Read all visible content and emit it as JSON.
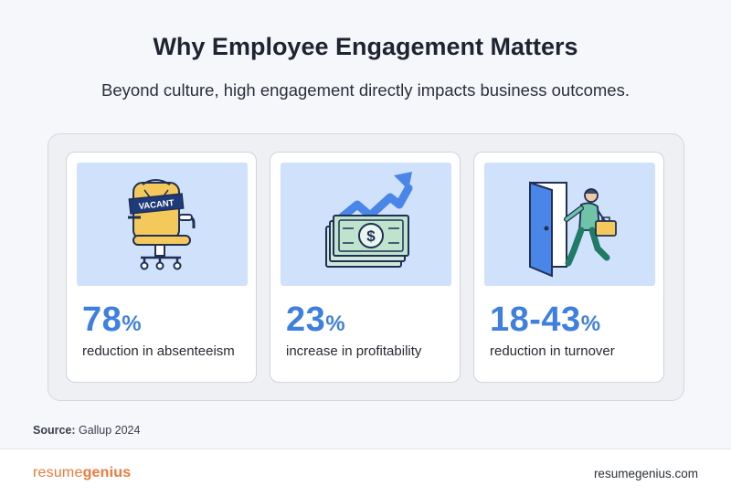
{
  "header": {
    "title": "Why Employee Engagement Matters",
    "subtitle": "Beyond culture, high engagement directly impacts business outcomes."
  },
  "cards": [
    {
      "icon": "vacant-chair-icon",
      "sign_text": "VACANT",
      "value": "78",
      "unit": "%",
      "description": "reduction in absenteeism"
    },
    {
      "icon": "money-growth-icon",
      "value": "23",
      "unit": "%",
      "description": "increase in profitability"
    },
    {
      "icon": "employee-leaving-door-icon",
      "value": "18-43",
      "unit": "%",
      "description": "reduction in turnover"
    }
  ],
  "source": {
    "label": "Source:",
    "text": " Gallup 2024"
  },
  "footer": {
    "brand_part1": "resume",
    "brand_part2": "genius",
    "site": "resumegenius.com"
  },
  "colors": {
    "accent_blue": "#3f7fe0",
    "illustration_bg": "#cfe1fb",
    "brand_orange": "#ef7a3b"
  }
}
